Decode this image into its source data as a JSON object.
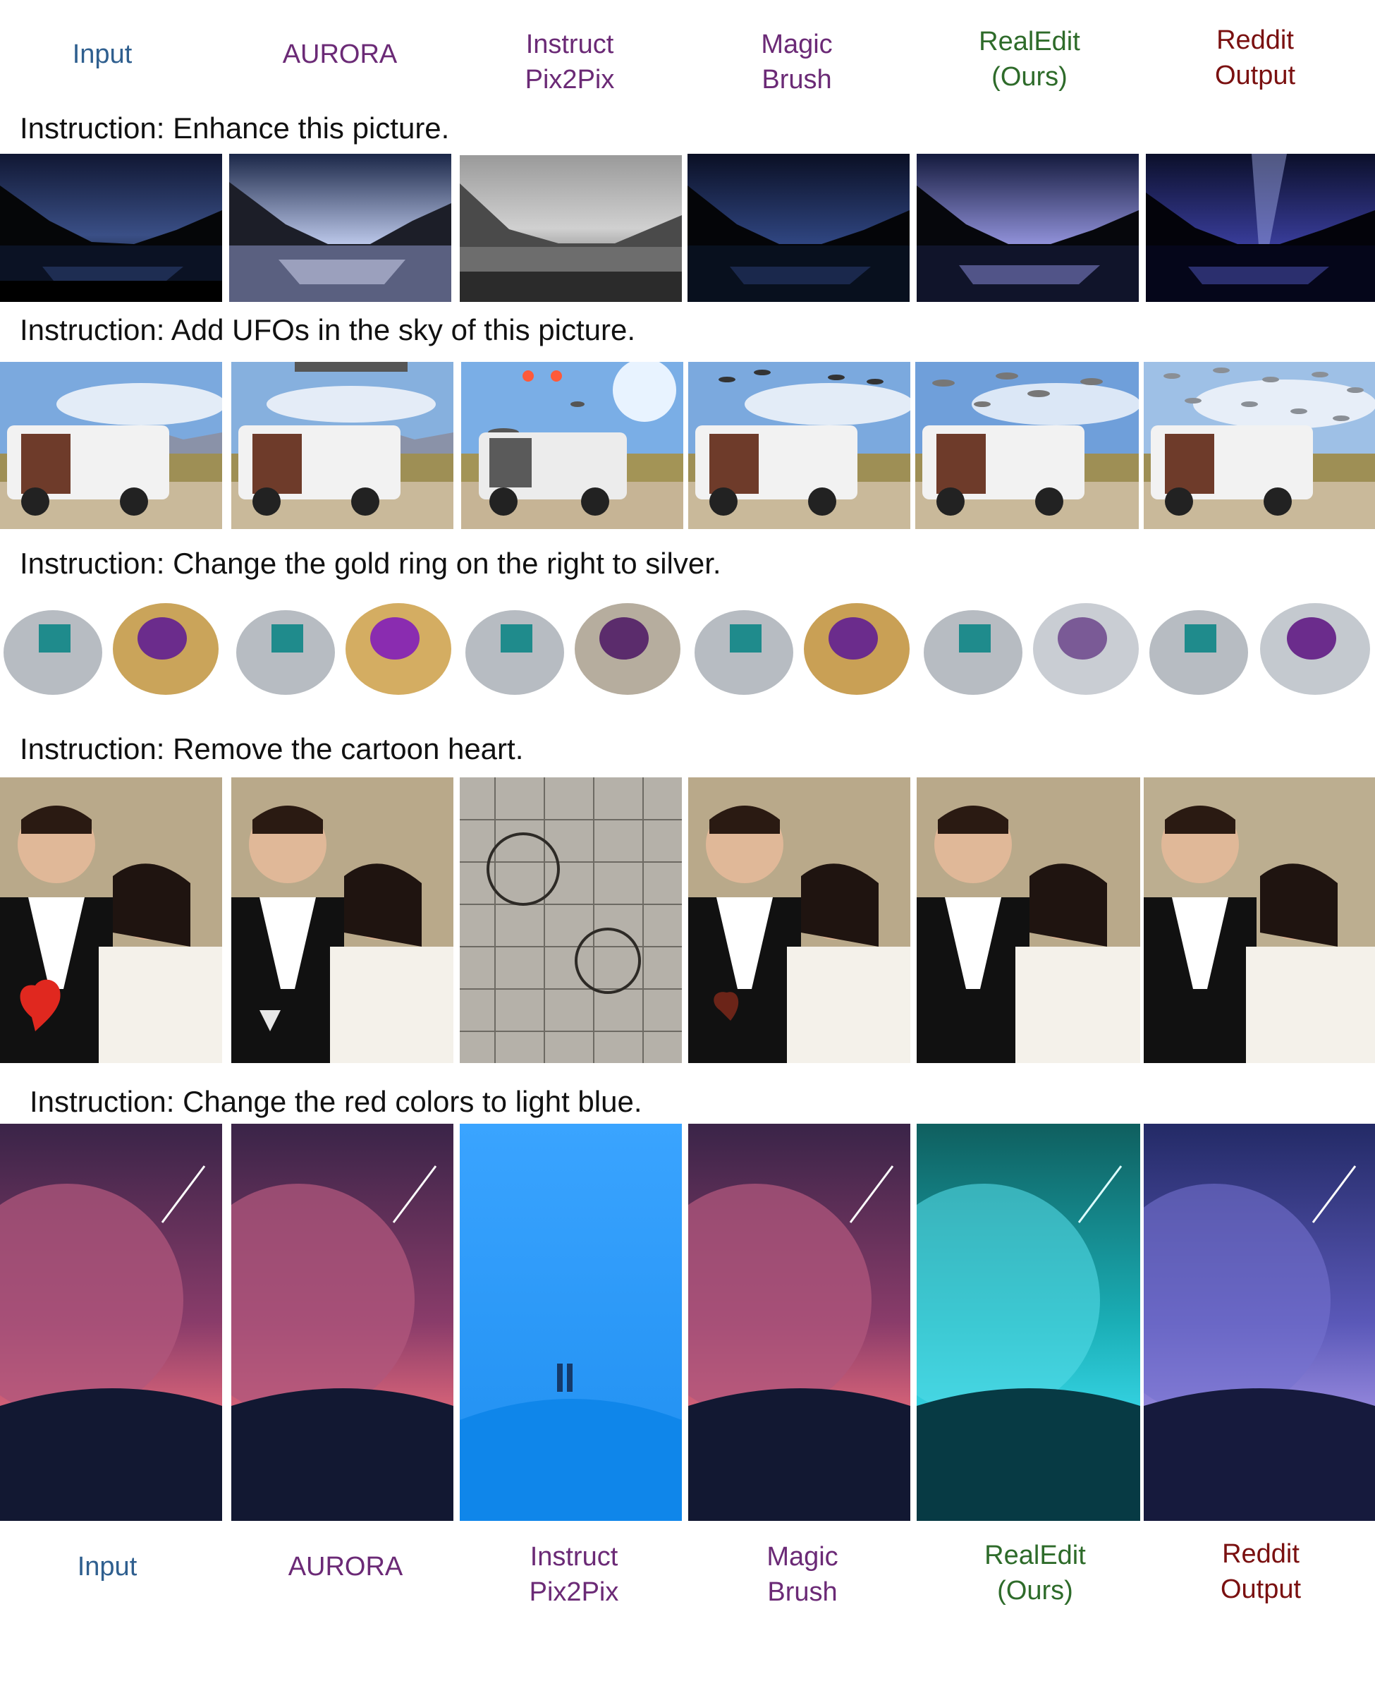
{
  "header_top": [
    {
      "line1": "Input",
      "line2": "",
      "color": "#2f5f8f"
    },
    {
      "line1": "AURORA",
      "line2": "",
      "color": "#6b2a76"
    },
    {
      "line1": "Instruct",
      "line2": "Pix2Pix",
      "color": "#6b2a76"
    },
    {
      "line1": "Magic",
      "line2": "Brush",
      "color": "#6b2a76"
    },
    {
      "line1": "RealEdit",
      "line2": "(Ours)",
      "color": "#2e6b2a"
    },
    {
      "line1": "Reddit",
      "line2": "Output",
      "color": "#7a1010"
    }
  ],
  "header_bottom": [
    {
      "line1": "Input",
      "line2": "",
      "color": "#2f5f8f"
    },
    {
      "line1": "AURORA",
      "line2": "",
      "color": "#6b2a76"
    },
    {
      "line1": "Instruct",
      "line2": "Pix2Pix",
      "color": "#6b2a76"
    },
    {
      "line1": "Magic",
      "line2": "Brush",
      "color": "#6b2a76"
    },
    {
      "line1": "RealEdit",
      "line2": "(Ours)",
      "color": "#2e6b2a"
    },
    {
      "line1": "Reddit",
      "line2": "Output",
      "color": "#7a1010"
    }
  ],
  "rows": [
    {
      "instruction": "Instruction: Enhance this picture.",
      "subject": "night-lake-landscape"
    },
    {
      "instruction": "Instruction: Add UFOs in the sky of this picture.",
      "subject": "white-van-desert"
    },
    {
      "instruction": "Instruction: Change the gold ring on the right to silver.",
      "subject": "class-rings"
    },
    {
      "instruction": "Instruction: Remove the cartoon heart.",
      "subject": "wedding-couple"
    },
    {
      "instruction": "Instruction: Change the red colors to light blue.",
      "subject": "moon-wolf-illustration"
    }
  ]
}
